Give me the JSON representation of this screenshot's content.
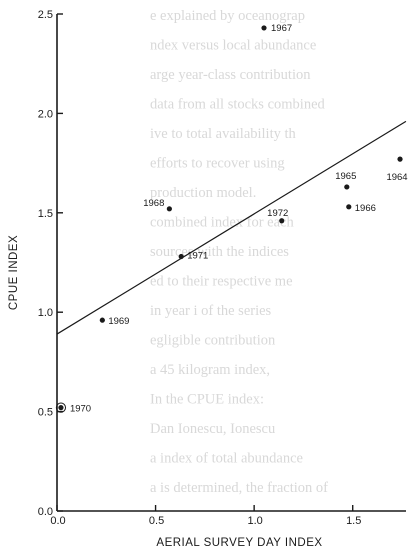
{
  "bleed_text": [
    "e explained by oceanograp",
    "ndex versus local abundance",
    "arge year-class contribution",
    "data from all stocks combined",
    "ive to total availability th",
    "efforts to recover using",
    "production model.",
    "combined index for each",
    "sources with the indices",
    "ed to their respective me",
    "in year i of the series",
    "egligible contribution",
    "a 45 kilogram index,",
    "In the CPUE index:",
    "Dan Ionescu, Ionescu",
    "a index of total abundance",
    "a is determined, the fraction of"
  ],
  "chart_data": {
    "type": "scatter",
    "xlabel": "AERIAL SURVEY DAY INDEX",
    "ylabel": "CPUE INDEX",
    "xlim": [
      0.0,
      1.75
    ],
    "ylim": [
      0.0,
      2.5
    ],
    "x_ticks": [
      {
        "value": 0.0,
        "label": "0.0"
      },
      {
        "value": 0.5,
        "label": "0.5"
      },
      {
        "value": 1.0,
        "label": "1.0"
      },
      {
        "value": 1.5,
        "label": "1.5"
      }
    ],
    "y_ticks": [
      {
        "value": 0.0,
        "label": "0.0"
      },
      {
        "value": 0.5,
        "label": "0.5"
      },
      {
        "value": 1.0,
        "label": "1.0"
      },
      {
        "value": 1.5,
        "label": "1.5"
      },
      {
        "value": 2.0,
        "label": "2.0"
      },
      {
        "value": 2.5,
        "label": "2.5"
      }
    ],
    "points": [
      {
        "year": "1967",
        "x": 1.05,
        "y": 2.43
      },
      {
        "year": "1968",
        "x": 0.57,
        "y": 1.52
      },
      {
        "year": "1971",
        "x": 0.63,
        "y": 1.28
      },
      {
        "year": "1972",
        "x": 1.14,
        "y": 1.46
      },
      {
        "year": "1965",
        "x": 1.47,
        "y": 1.63
      },
      {
        "year": "1966",
        "x": 1.48,
        "y": 1.53
      },
      {
        "year": "1964",
        "x": 1.74,
        "y": 1.77
      },
      {
        "year": "1969",
        "x": 0.23,
        "y": 0.96
      },
      {
        "year": "1970",
        "x": 0.02,
        "y": 0.52
      }
    ],
    "fit_line": {
      "x": [
        0.0,
        1.77
      ],
      "y": [
        0.89,
        1.96
      ]
    },
    "grid": false,
    "legend": "none"
  }
}
